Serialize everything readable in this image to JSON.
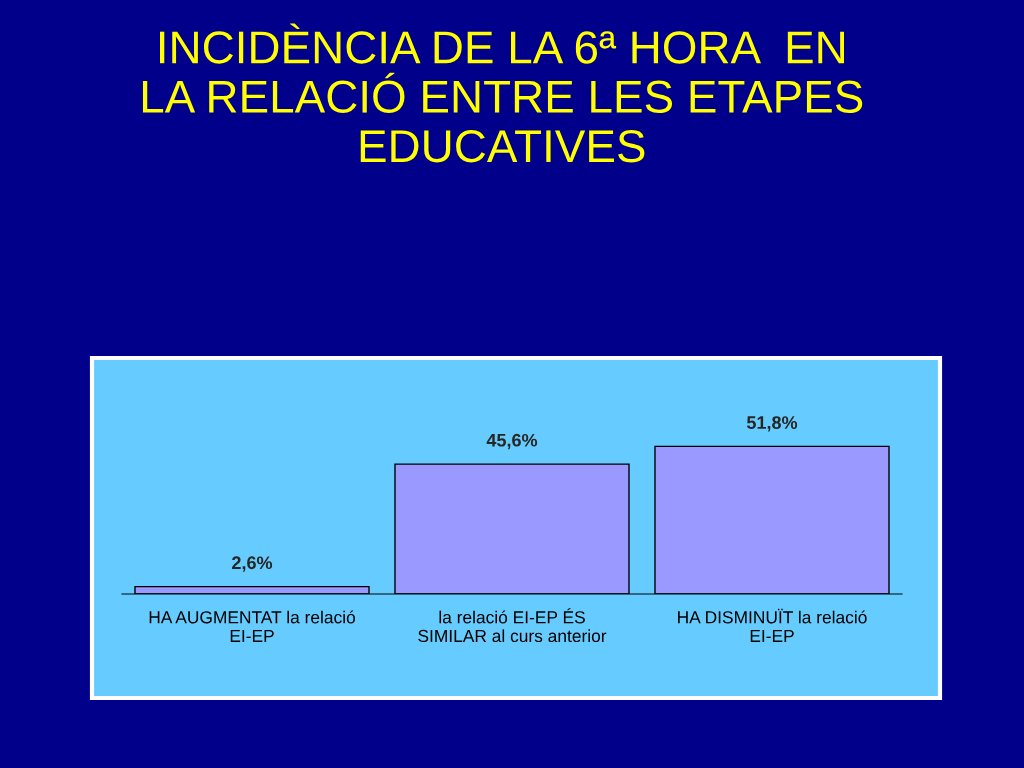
{
  "chart_data": {
    "type": "bar",
    "title": "INCIDÈNCIA DE LA 6ª HORA  EN\nLA RELACIÓ ENTRE LES ETAPES\nEDUCATIVES",
    "categories": [
      "HA AUGMENTAT la relació\nEI-EP",
      "la relació EI-EP ÉS\nSIMILAR al curs anterior",
      "HA DISMINUÏT la relació\nEI-EP"
    ],
    "values": [
      2.6,
      45.6,
      51.8
    ],
    "value_labels": [
      "2,6%",
      "45,6%",
      "51,8%"
    ],
    "color": "#9999ff",
    "grid": false,
    "legend": false
  }
}
